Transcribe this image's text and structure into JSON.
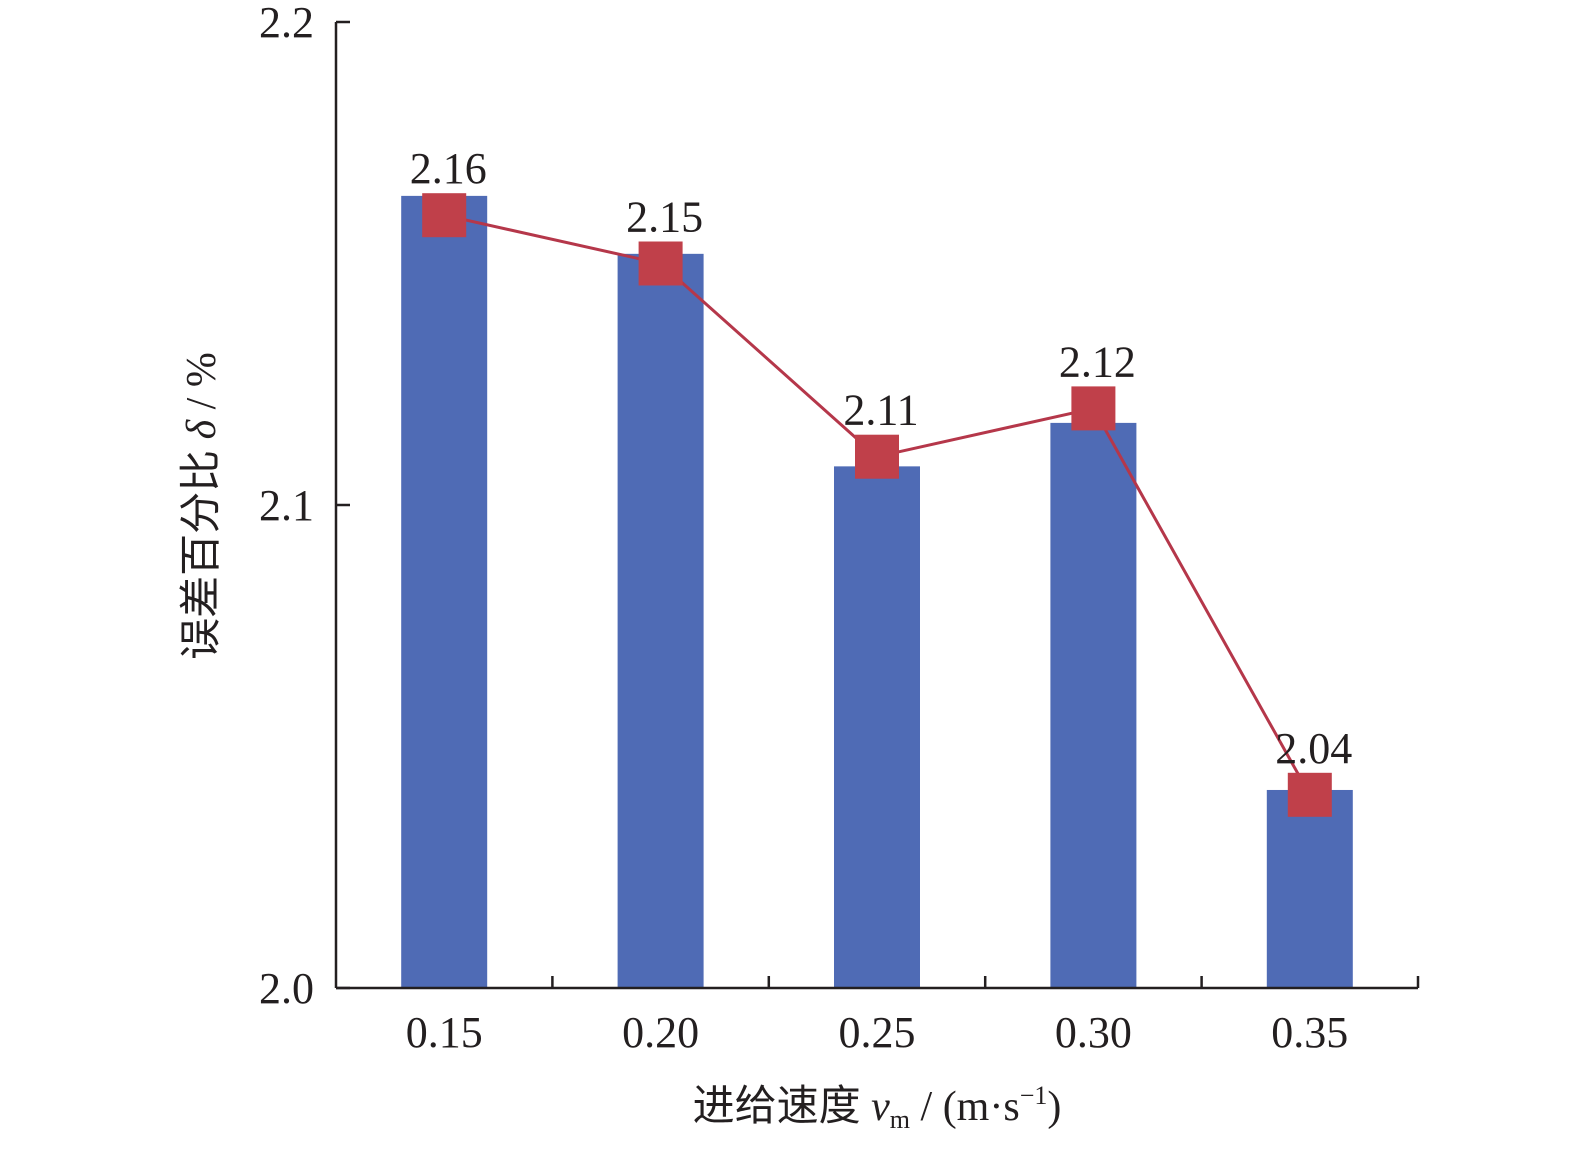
{
  "chart_data": {
    "type": "bar",
    "categories": [
      "0.15",
      "0.20",
      "0.25",
      "0.30",
      "0.35"
    ],
    "series": [
      {
        "kind": "bar",
        "values": [
          2.164,
          2.152,
          2.108,
          2.117,
          2.041
        ]
      },
      {
        "kind": "line",
        "values": [
          2.16,
          2.15,
          2.11,
          2.12,
          2.04
        ]
      }
    ],
    "data_labels": [
      "2.16",
      "2.15",
      "2.11",
      "2.12",
      "2.04"
    ],
    "ylim": [
      2.0,
      2.2
    ],
    "yticks": [
      "2.0",
      "2.1",
      "2.2"
    ],
    "ytick_values": [
      2.0,
      2.1,
      2.2
    ],
    "xlabel": {
      "prefix": "进给速度 ",
      "var": "v",
      "sub": "m",
      "unit_open": " / (m·s",
      "sup": "−1",
      "unit_close": ")"
    },
    "ylabel": {
      "prefix": "误差百分比 ",
      "var": "δ",
      "unit": " / %"
    },
    "grid": false,
    "legend": "none",
    "colors": {
      "bar": "#4f6bb5",
      "line": "#b5374a",
      "marker": "#c0404a",
      "axis": "#231f20"
    }
  }
}
